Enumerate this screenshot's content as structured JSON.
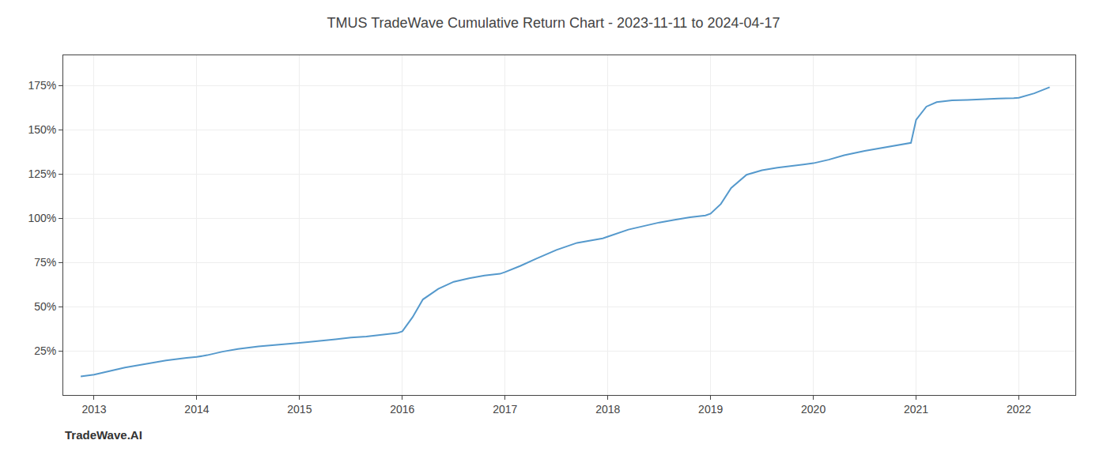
{
  "chart_data": {
    "type": "line",
    "title": "TMUS TradeWave Cumulative Return Chart - 2023-11-11 to 2024-04-17",
    "annotations": [
      "TradeWave.AI"
    ],
    "color": "#5599cc",
    "grid": true,
    "x": [
      2012.87,
      2013.0,
      2013.15,
      2013.3,
      2013.5,
      2013.7,
      2013.9,
      2014.0,
      2014.1,
      2014.25,
      2014.4,
      2014.6,
      2014.8,
      2014.95,
      2015.0,
      2015.1,
      2015.2,
      2015.35,
      2015.5,
      2015.65,
      2015.8,
      2015.95,
      2016.0,
      2016.1,
      2016.2,
      2016.35,
      2016.5,
      2016.65,
      2016.8,
      2016.95,
      2017.0,
      2017.15,
      2017.3,
      2017.5,
      2017.7,
      2017.85,
      2017.95,
      2018.0,
      2018.1,
      2018.2,
      2018.35,
      2018.5,
      2018.65,
      2018.8,
      2018.95,
      2019.0,
      2019.1,
      2019.2,
      2019.35,
      2019.5,
      2019.65,
      2019.8,
      2019.95,
      2020.0,
      2020.15,
      2020.3,
      2020.5,
      2020.7,
      2020.85,
      2020.95,
      2021.0,
      2021.1,
      2021.2,
      2021.35,
      2021.5,
      2021.65,
      2021.8,
      2021.95,
      2022.0,
      2022.15,
      2022.3
    ],
    "values": [
      0.105,
      0.115,
      0.135,
      0.155,
      0.175,
      0.195,
      0.21,
      0.215,
      0.225,
      0.245,
      0.26,
      0.275,
      0.285,
      0.295,
      0.295,
      0.3,
      0.305,
      0.315,
      0.325,
      0.33,
      0.34,
      0.35,
      0.36,
      0.44,
      0.54,
      0.6,
      0.64,
      0.66,
      0.675,
      0.685,
      0.695,
      0.73,
      0.77,
      0.82,
      0.86,
      0.875,
      0.885,
      0.895,
      0.915,
      0.935,
      0.955,
      0.975,
      0.99,
      1.005,
      1.015,
      1.025,
      1.08,
      1.17,
      1.245,
      1.27,
      1.285,
      1.295,
      1.305,
      1.31,
      1.33,
      1.355,
      1.38,
      1.4,
      1.415,
      1.425,
      1.555,
      1.63,
      1.655,
      1.665,
      1.668,
      1.67,
      1.675,
      1.678,
      1.68,
      1.705,
      1.74
    ],
    "xlim": [
      2012.7,
      2022.55
    ],
    "xticks": [
      2013,
      2014,
      2015,
      2016,
      2017,
      2018,
      2019,
      2020,
      2021,
      2022
    ],
    "ylim": [
      0.0,
      1.92
    ],
    "yticks": [
      {
        "value": 0.25,
        "label": "25%"
      },
      {
        "value": 0.5,
        "label": "50%"
      },
      {
        "value": 0.75,
        "label": "75%"
      },
      {
        "value": 1.0,
        "label": "100%"
      },
      {
        "value": 1.25,
        "label": "125%"
      },
      {
        "value": 1.5,
        "label": "150%"
      },
      {
        "value": 1.75,
        "label": "175%"
      }
    ]
  }
}
